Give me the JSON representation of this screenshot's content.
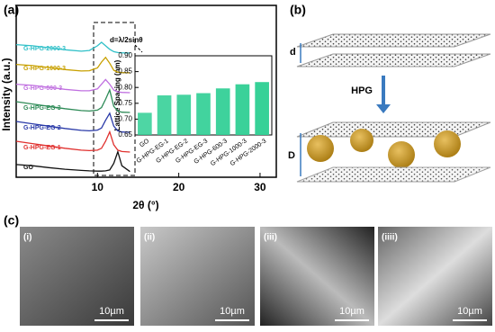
{
  "labels": {
    "a": "(a)",
    "b": "(b)",
    "c": "(c)"
  },
  "chart_data": [
    {
      "type": "line",
      "xlabel": "2θ (°)",
      "ylabel": "Intensity (a.u.)",
      "xlim": [
        0,
        32
      ],
      "xticks": [
        10,
        20,
        30
      ],
      "x": [
        0,
        2,
        4,
        6,
        8,
        9,
        10,
        10.5,
        11,
        11.5,
        12,
        12.5,
        13,
        14
      ],
      "series": [
        {
          "name": "GO",
          "color": "#111111",
          "values": [
            0.35,
            0.3,
            0.22,
            0.15,
            0.1,
            0.08,
            0.07,
            0.07,
            0.08,
            0.12,
            0.4,
            0.9,
            0.3,
            0.05
          ]
        },
        {
          "name": "G-HPG-EG-1",
          "color": "#e0302e",
          "values": [
            0.5,
            0.4,
            0.3,
            0.2,
            0.12,
            0.1,
            0.12,
            0.2,
            0.5,
            0.9,
            0.35,
            0.12,
            0.06,
            0.04
          ]
        },
        {
          "name": "G-HPG-EG-2",
          "color": "#2a3aa8",
          "values": [
            0.5,
            0.4,
            0.3,
            0.2,
            0.12,
            0.1,
            0.13,
            0.22,
            0.55,
            0.85,
            0.3,
            0.1,
            0.05,
            0.04
          ]
        },
        {
          "name": "G-HPG-EG-3",
          "color": "#2e8b57",
          "values": [
            0.5,
            0.4,
            0.3,
            0.2,
            0.12,
            0.1,
            0.14,
            0.25,
            0.6,
            1.0,
            0.3,
            0.1,
            0.05,
            0.04
          ]
        },
        {
          "name": "G-HPG-600-3",
          "color": "#c070e0",
          "values": [
            0.4,
            0.35,
            0.27,
            0.18,
            0.12,
            0.12,
            0.2,
            0.4,
            0.6,
            0.4,
            0.15,
            0.07,
            0.05,
            0.04
          ]
        },
        {
          "name": "G-HPG-1000-3",
          "color": "#c8a000",
          "values": [
            0.4,
            0.35,
            0.27,
            0.18,
            0.12,
            0.13,
            0.25,
            0.5,
            0.7,
            0.45,
            0.15,
            0.07,
            0.05,
            0.04
          ]
        },
        {
          "name": "G-HPG-2000-3",
          "color": "#30c0c8",
          "values": [
            0.4,
            0.35,
            0.27,
            0.18,
            0.12,
            0.15,
            0.35,
            0.5,
            0.35,
            0.2,
            0.1,
            0.06,
            0.05,
            0.04
          ]
        }
      ]
    },
    {
      "type": "bar",
      "annotation": "d=λ/2sinθ",
      "ylabel": "Lattice Spacing (nm)",
      "categories": [
        "GO",
        "G-HPG-EG-1",
        "G-HPG-EG-2",
        "G-HPG-EG-3",
        "G-HPG-600-3",
        "G-HPG-1000-3",
        "G-HPG-2000-3"
      ],
      "values": [
        0.72,
        0.775,
        0.777,
        0.782,
        0.797,
        0.81,
        0.817
      ],
      "color": "#2fcf94",
      "ylim": [
        0.65,
        0.9
      ],
      "yticks": [
        0.65,
        {
          "value": 0.7,
          "label": "0.70"
        },
        0.75,
        {
          "value": 0.8,
          "label": "0.80"
        },
        0.85,
        {
          "value": 0.9,
          "label": "0.90"
        }
      ]
    }
  ],
  "diagram": {
    "d": "d",
    "arrow": "HPG",
    "D": "D"
  },
  "sem": [
    {
      "label": "(i)",
      "scale_bar": "10µm"
    },
    {
      "label": "(ii)",
      "scale_bar": "10µm"
    },
    {
      "label": "(iii)",
      "scale_bar": "10µm"
    },
    {
      "label": "(iiii)",
      "scale_bar": "10µm"
    }
  ]
}
